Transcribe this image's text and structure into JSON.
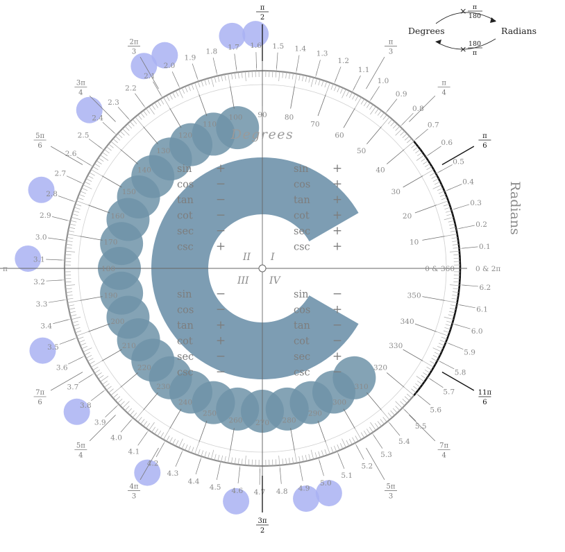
{
  "labels": {
    "degrees_title": "Degrees",
    "radians_title": "Radians",
    "zero_deg": "0 & 360",
    "zero_rad": "0 & 2π",
    "pi_left": "π",
    "quadrants": [
      "I",
      "II",
      "III",
      "IV"
    ]
  },
  "conversion": {
    "from": "Degrees",
    "to": "Radians",
    "times": "×",
    "forward_num": "π",
    "forward_den": "180",
    "backward_num": "180",
    "backward_den": "π"
  },
  "degree_labels": [
    "10",
    "20",
    "30",
    "40",
    "50",
    "60",
    "70",
    "80",
    "90",
    "100",
    "110",
    "120",
    "130",
    "140",
    "150",
    "160",
    "170",
    "180",
    "190",
    "200",
    "210",
    "220",
    "230",
    "240",
    "250",
    "260",
    "270",
    "280",
    "290",
    "300",
    "310",
    "320",
    "330",
    "340",
    "350"
  ],
  "highlighted_degrees": [
    "110",
    "130",
    "150",
    "170",
    "190",
    "210",
    "230",
    "250",
    "260",
    "280",
    "300",
    "100",
    "120",
    "140",
    "160",
    "180",
    "200",
    "220",
    "240",
    "270",
    "290",
    "310"
  ],
  "radian_labels": [
    "0.1",
    "0.2",
    "0.3",
    "0.4",
    "0.5",
    "0.6",
    "0.7",
    "0.8",
    "0.9",
    "1.0",
    "1.1",
    "1.2",
    "1.3",
    "1.4",
    "1.5",
    "1.6",
    "1.7",
    "1.8",
    "1.9",
    "2.0",
    "2.1",
    "2.2",
    "2.3",
    "2.4",
    "2.5",
    "2.6",
    "2.7",
    "2.8",
    "2.9",
    "3.0",
    "3.1",
    "3.2",
    "3.3",
    "3.4",
    "3.5",
    "3.6",
    "3.7",
    "3.8",
    "3.9",
    "4.0",
    "4.1",
    "4.2",
    "4.3",
    "4.4",
    "4.5",
    "4.6",
    "4.7",
    "4.8",
    "4.9",
    "5.0",
    "5.1",
    "5.2",
    "5.3",
    "5.4",
    "5.5",
    "5.6",
    "5.7",
    "5.8",
    "5.9",
    "6.0",
    "6.1",
    "6.2"
  ],
  "highlighted_radians": [
    "1.6",
    "1.7",
    "2.0",
    "2.1",
    "2.4",
    "2.8",
    "3.1",
    "3.5",
    "3.8",
    "4.2",
    "4.6",
    "4.9",
    "5.0"
  ],
  "special_angles": [
    {
      "num": "π",
      "den": "6",
      "deg": 30,
      "dark": true
    },
    {
      "num": "π",
      "den": "4",
      "deg": 45,
      "dark": false
    },
    {
      "num": "π",
      "den": "3",
      "deg": 60,
      "dark": false
    },
    {
      "num": "π",
      "den": "2",
      "deg": 90,
      "dark": true
    },
    {
      "num": "2π",
      "den": "3",
      "deg": 120,
      "dark": false
    },
    {
      "num": "3π",
      "den": "4",
      "deg": 135,
      "dark": false
    },
    {
      "num": "5π",
      "den": "6",
      "deg": 150,
      "dark": false
    },
    {
      "num": "7π",
      "den": "6",
      "deg": 210,
      "dark": false
    },
    {
      "num": "5π",
      "den": "4",
      "deg": 225,
      "dark": false
    },
    {
      "num": "4π",
      "den": "3",
      "deg": 240,
      "dark": false
    },
    {
      "num": "3π",
      "den": "2",
      "deg": 270,
      "dark": true
    },
    {
      "num": "5π",
      "den": "3",
      "deg": 300,
      "dark": false
    },
    {
      "num": "7π",
      "den": "4",
      "deg": 315,
      "dark": false
    },
    {
      "num": "11π",
      "den": "6",
      "deg": 330,
      "dark": true
    }
  ],
  "quadrant_signs": [
    {
      "quadrant": "II",
      "rows": [
        [
          "sin",
          "+"
        ],
        [
          "cos",
          "−"
        ],
        [
          "tan",
          "−"
        ],
        [
          "cot",
          "−"
        ],
        [
          "sec",
          "−"
        ],
        [
          "csc",
          "+"
        ]
      ]
    },
    {
      "quadrant": "I",
      "rows": [
        [
          "sin",
          "+"
        ],
        [
          "cos",
          "+"
        ],
        [
          "tan",
          "+"
        ],
        [
          "cot",
          "+"
        ],
        [
          "sec",
          "+"
        ],
        [
          "csc",
          "+"
        ]
      ]
    },
    {
      "quadrant": "III",
      "rows": [
        [
          "sin",
          "−"
        ],
        [
          "cos",
          "−"
        ],
        [
          "tan",
          "+"
        ],
        [
          "cot",
          "+"
        ],
        [
          "sec",
          "−"
        ],
        [
          "csc",
          "−"
        ]
      ]
    },
    {
      "quadrant": "IV",
      "rows": [
        [
          "sin",
          "−"
        ],
        [
          "cos",
          "+"
        ],
        [
          "tan",
          "−"
        ],
        [
          "cot",
          "−"
        ],
        [
          "sec",
          "+"
        ],
        [
          "csc",
          "−"
        ]
      ]
    }
  ],
  "colors": {
    "dark_blob": "#6f93a8",
    "light_blob": "#a9b2f2",
    "c_shape": "#7d9db3",
    "circle": "#909090",
    "tick": "#aaaaaa",
    "dark_arc": "#111111"
  }
}
